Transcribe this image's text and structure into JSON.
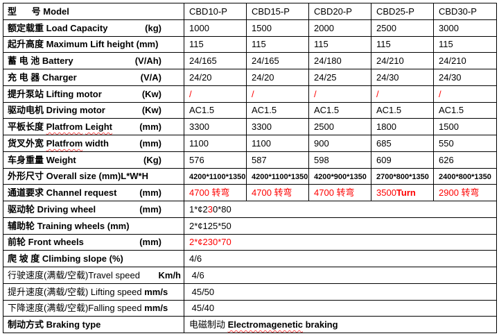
{
  "colors": {
    "data_red": "#fe0000",
    "border": "#000000",
    "background": "#ffffff"
  },
  "table": {
    "models": [
      "CBD10-P",
      "CBD15-P",
      "CBD20-P",
      "CBD25-P",
      "CBD30-P"
    ],
    "rows": [
      {
        "label": [
          {
            "t": "型      号 ",
            "b": true
          },
          {
            "t": "Model",
            "b": true
          }
        ],
        "unit": null,
        "cells": [
          [
            {
              "t": "CBD10-P"
            }
          ],
          [
            {
              "t": "CBD15-P"
            }
          ],
          [
            {
              "t": "CBD20-P"
            }
          ],
          [
            {
              "t": "CBD25-P"
            }
          ],
          [
            {
              "t": "CBD30-P"
            }
          ]
        ]
      },
      {
        "label": [
          {
            "t": "额定载重 ",
            "b": true
          },
          {
            "t": "Load Capacity",
            "b": true
          }
        ],
        "unit": {
          "t": "(kg)",
          "b": true
        },
        "cells": [
          [
            {
              "t": "1000"
            }
          ],
          [
            {
              "t": "1500"
            }
          ],
          [
            {
              "t": "2000"
            }
          ],
          [
            {
              "t": "2500"
            }
          ],
          [
            {
              "t": "3000"
            }
          ]
        ]
      },
      {
        "label": [
          {
            "t": "起升高度 ",
            "b": true
          },
          {
            "t": "Maximum Lift height (mm)",
            "b": true
          }
        ],
        "unit": null,
        "cells": [
          [
            {
              "t": "115"
            }
          ],
          [
            {
              "t": "115"
            }
          ],
          [
            {
              "t": "115"
            }
          ],
          [
            {
              "t": "115"
            }
          ],
          [
            {
              "t": "115"
            }
          ]
        ]
      },
      {
        "label": [
          {
            "t": "蓄 电 池 ",
            "b": true
          },
          {
            "t": "Battery",
            "b": true
          }
        ],
        "unit": {
          "t": "(V/Ah)",
          "b": true
        },
        "cells": [
          [
            {
              "t": "24/165"
            }
          ],
          [
            {
              "t": "24/165"
            }
          ],
          [
            {
              "t": "24/180"
            }
          ],
          [
            {
              "t": "24/210"
            }
          ],
          [
            {
              "t": "24/210"
            }
          ]
        ]
      },
      {
        "label": [
          {
            "t": "充 电 器 ",
            "b": true
          },
          {
            "t": "Charger",
            "b": true
          }
        ],
        "unit": {
          "t": "(V/A)",
          "b": true
        },
        "cells": [
          [
            {
              "t": "24/20"
            }
          ],
          [
            {
              "t": "24/20"
            }
          ],
          [
            {
              "t": "24/25"
            }
          ],
          [
            {
              "t": "24/30"
            }
          ],
          [
            {
              "t": "24/30"
            }
          ]
        ]
      },
      {
        "label": [
          {
            "t": "提升泵站 ",
            "b": true
          },
          {
            "t": "Lifting motor",
            "b": true
          }
        ],
        "unit": {
          "t": "(Kw)",
          "b": true
        },
        "cells": [
          [
            {
              "t": "/",
              "r": true
            }
          ],
          [
            {
              "t": "/",
              "r": true
            }
          ],
          [
            {
              "t": "/",
              "r": true
            }
          ],
          [
            {
              "t": "/",
              "r": true
            }
          ],
          [
            {
              "t": "/",
              "r": true
            }
          ]
        ]
      },
      {
        "label": [
          {
            "t": "驱动电机 ",
            "b": true
          },
          {
            "t": "Driving motor",
            "b": true
          }
        ],
        "unit": {
          "t": "(Kw)",
          "b": true
        },
        "cells": [
          [
            {
              "t": "AC1.5"
            }
          ],
          [
            {
              "t": "AC1.5"
            }
          ],
          [
            {
              "t": "AC1.5"
            }
          ],
          [
            {
              "t": "AC1.5"
            }
          ],
          [
            {
              "t": "AC1.5"
            }
          ]
        ]
      },
      {
        "label": [
          {
            "t": "平板长度 ",
            "b": true
          },
          {
            "t": "Platfrom",
            "b": true,
            "w": true
          },
          {
            "t": " ",
            "b": true
          },
          {
            "t": "Leight",
            "b": true,
            "w": true
          }
        ],
        "unit": {
          "t": "(mm)",
          "b": true
        },
        "cells": [
          [
            {
              "t": "3300"
            }
          ],
          [
            {
              "t": "3300"
            }
          ],
          [
            {
              "t": "2500"
            }
          ],
          [
            {
              "t": "1800"
            }
          ],
          [
            {
              "t": "1500"
            }
          ]
        ]
      },
      {
        "label": [
          {
            "t": "货叉外宽 ",
            "b": true
          },
          {
            "t": "Platfrom",
            "b": true,
            "w": true
          },
          {
            "t": " width",
            "b": true
          }
        ],
        "unit": {
          "t": "(mm)",
          "b": true
        },
        "cells": [
          [
            {
              "t": "1100"
            }
          ],
          [
            {
              "t": "1100"
            }
          ],
          [
            {
              "t": "900"
            }
          ],
          [
            {
              "t": "685"
            }
          ],
          [
            {
              "t": "550"
            }
          ]
        ]
      },
      {
        "label": [
          {
            "t": "车身重量 ",
            "b": true
          },
          {
            "t": "Weight",
            "b": true
          }
        ],
        "unit": {
          "t": "(Kg)",
          "b": true
        },
        "cells": [
          [
            {
              "t": "576"
            }
          ],
          [
            {
              "t": "587"
            }
          ],
          [
            {
              "t": "598"
            }
          ],
          [
            {
              "t": "609"
            }
          ],
          [
            {
              "t": "626"
            }
          ]
        ]
      },
      {
        "label": [
          {
            "t": "外形尺寸 ",
            "b": true
          },
          {
            "t": "Overall size (mm)L*W*H",
            "b": true
          }
        ],
        "unit": null,
        "cells": [
          [
            {
              "t": "4200*1100*1350",
              "b": true,
              "s": true
            }
          ],
          [
            {
              "t": "4200*1100*1350",
              "b": true,
              "s": true
            }
          ],
          [
            {
              "t": "4200*900*1350",
              "b": true,
              "s": true
            }
          ],
          [
            {
              "t": "2700*800*1350",
              "b": true,
              "s": true
            }
          ],
          [
            {
              "t": "2400*800*1350",
              "b": true,
              "s": true
            }
          ]
        ]
      },
      {
        "label": [
          {
            "t": "通道要求 ",
            "b": true
          },
          {
            "t": "Channel request",
            "b": true
          }
        ],
        "unit": {
          "t": "(mm)",
          "b": true
        },
        "cells": [
          [
            {
              "t": "4700 转弯",
              "r": true
            }
          ],
          [
            {
              "t": "4700 转弯",
              "r": true
            }
          ],
          [
            {
              "t": "4700 转弯",
              "r": true
            }
          ],
          [
            {
              "t": "3500",
              "r": true
            },
            {
              "t": "Turn",
              "r": true,
              "b": true
            }
          ],
          [
            {
              "t": "2900 转弯",
              "r": true
            }
          ]
        ]
      },
      {
        "label": [
          {
            "t": "驱动轮 ",
            "b": true
          },
          {
            "t": "Driving wheel",
            "b": true
          }
        ],
        "unit": {
          "t": "(mm)",
          "b": true
        },
        "merged": [
          {
            "t": "1*¢2"
          },
          {
            "t": "3",
            "r": true
          },
          {
            "t": "0*80"
          }
        ]
      },
      {
        "label": [
          {
            "t": "辅助轮 ",
            "b": true
          },
          {
            "t": "Training wheels (mm)",
            "b": true
          }
        ],
        "unit": null,
        "merged": [
          {
            "t": "2*¢125*50"
          }
        ]
      },
      {
        "label": [
          {
            "t": "前轮 ",
            "b": true
          },
          {
            "t": "Front wheels",
            "b": true
          }
        ],
        "unit": {
          "t": "(mm)",
          "b": true
        },
        "merged": [
          {
            "t": "2*¢230*70",
            "r": true
          }
        ]
      },
      {
        "label": [
          {
            "t": "爬 坡 度 ",
            "b": true
          },
          {
            "t": "Climbing slope (%)",
            "b": true
          }
        ],
        "unit": null,
        "merged": [
          {
            "t": "4/6"
          }
        ]
      },
      {
        "label": [
          {
            "t": "行驶速度(满载/空载)"
          },
          {
            "t": "Travel speed"
          }
        ],
        "unit": {
          "t": "Km/h",
          "b": true
        },
        "tight": true,
        "merged": [
          {
            "t": " 4/6"
          }
        ]
      },
      {
        "label": [
          {
            "t": "提升速度(满载/空载) Lifting speed "
          },
          {
            "t": "mm/s",
            "b": true
          }
        ],
        "unit": null,
        "merged": [
          {
            "t": " 45/50"
          }
        ]
      },
      {
        "label": [
          {
            "t": "下降速度(满载/空载)Falling speed "
          },
          {
            "t": "mm/s",
            "b": true
          }
        ],
        "unit": null,
        "merged": [
          {
            "t": " 45/40"
          }
        ]
      },
      {
        "label": [
          {
            "t": "制动方式 ",
            "b": true
          },
          {
            "t": "Braking type",
            "b": true
          }
        ],
        "unit": null,
        "merged": [
          {
            "t": "电磁制动 "
          },
          {
            "t": "Electromagenetic",
            "b": true,
            "w": true
          },
          {
            "t": " braking",
            "b": true
          }
        ]
      }
    ]
  }
}
